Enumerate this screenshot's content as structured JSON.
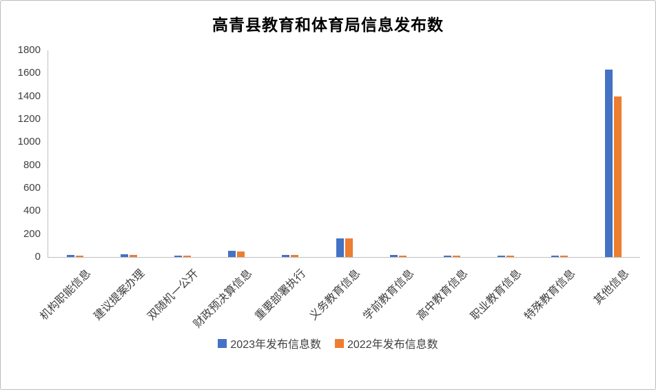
{
  "chart_data": {
    "type": "bar",
    "title": "高青县教育和体育局信息发布数",
    "categories": [
      "机构职能信息",
      "建议提案办理",
      "双随机一公开",
      "财政预决算信息",
      "重要部署执行",
      "义务教育信息",
      "学前教育信息",
      "高中教育信息",
      "职业教育信息",
      "特殊教育信息",
      "其他信息"
    ],
    "series": [
      {
        "name": "2023年发布信息数",
        "color": "#4472C4",
        "values": [
          20,
          22,
          12,
          55,
          20,
          160,
          20,
          12,
          12,
          12,
          1630
        ]
      },
      {
        "name": "2022年发布信息数",
        "color": "#ED7D31",
        "values": [
          12,
          20,
          12,
          50,
          20,
          160,
          12,
          10,
          10,
          12,
          1400
        ]
      }
    ],
    "xlabel": "",
    "ylabel": "",
    "ylim": [
      0,
      1800
    ],
    "y_ticks": [
      0,
      200,
      400,
      600,
      800,
      1000,
      1200,
      1400,
      1600,
      1800
    ],
    "grid": false,
    "legend_position": "bottom"
  }
}
